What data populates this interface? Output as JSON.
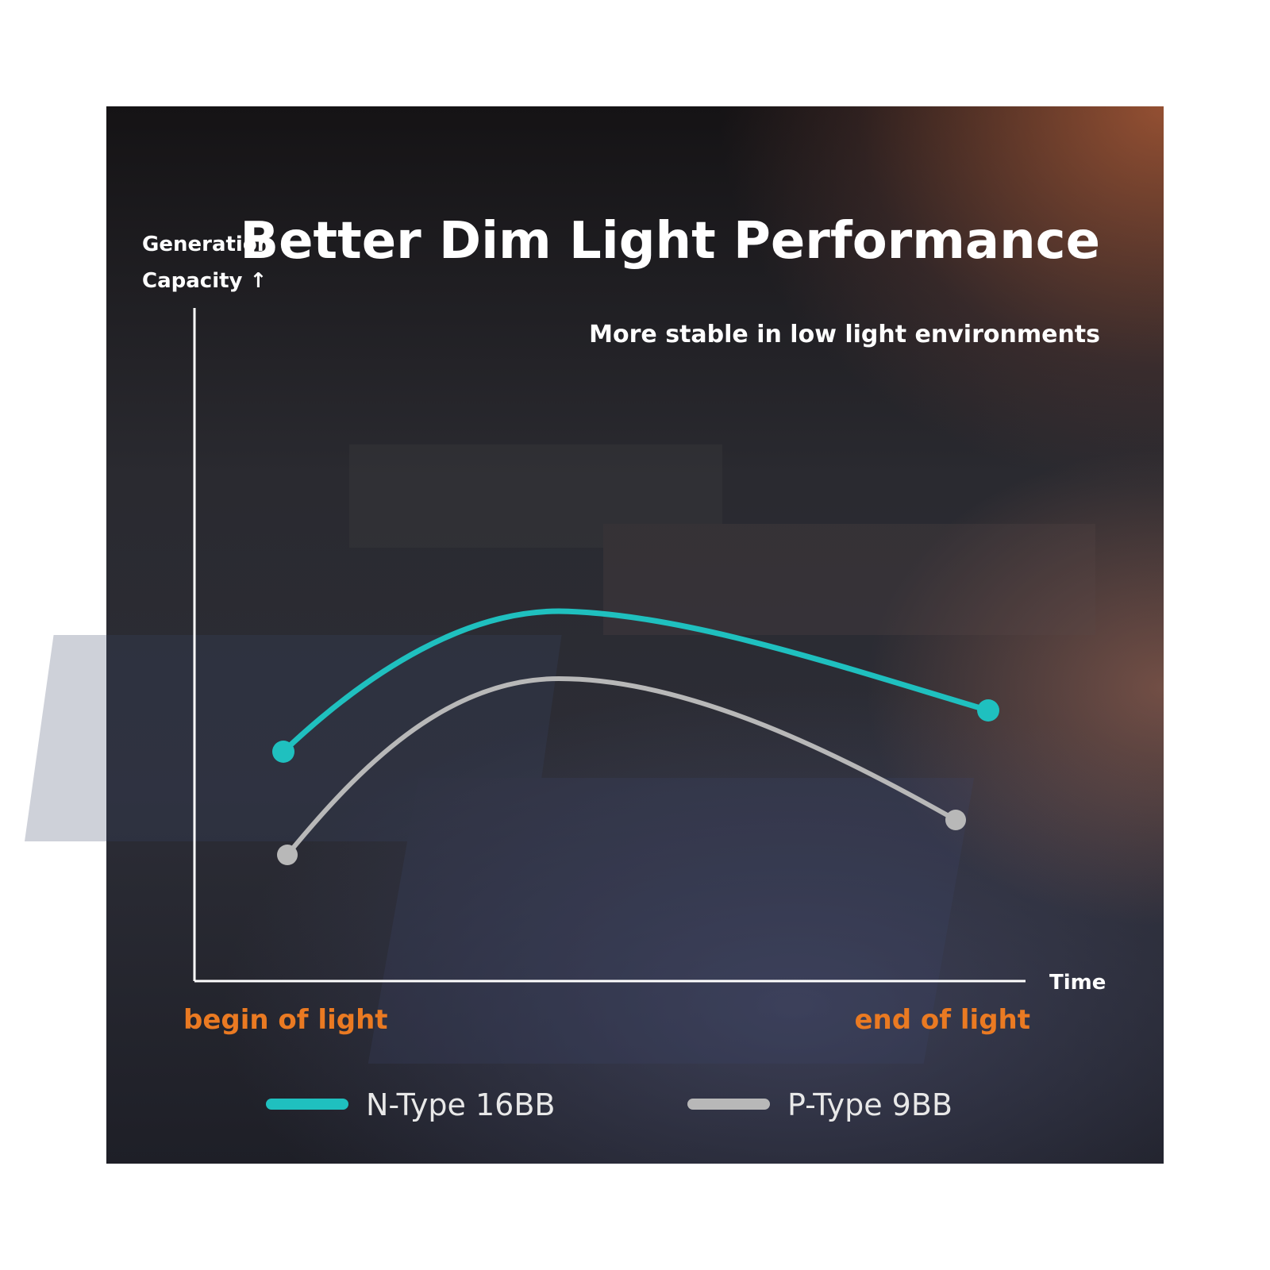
{
  "title": "Better Dim Light Performance",
  "subtitle": "More stable in low light environments",
  "y_axis_label": [
    "Generation",
    "Capacity ↑"
  ],
  "x_axis_label": "Time",
  "x_start_label": "begin of light",
  "x_end_label": "end of light",
  "legend": [
    {
      "name": "N-Type 16BB",
      "color": "#1fc0bf"
    },
    {
      "name": "P-Type 9BB",
      "color": "#b8b8b8"
    }
  ]
}
